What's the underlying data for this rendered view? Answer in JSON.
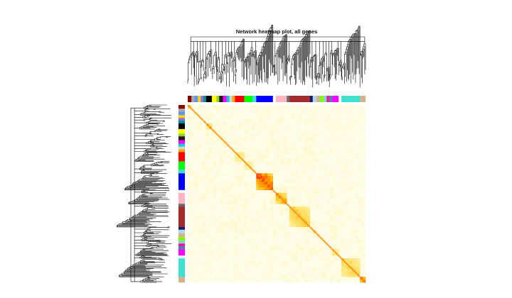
{
  "chart_data": {
    "type": "heatmap",
    "title": "Network heatmap plot, all genes",
    "xlabel": "",
    "ylabel": "",
    "legend": "none",
    "color_scale": [
      "#fffde7",
      "#fff3b0",
      "#ffe066",
      "#ffb300",
      "#ff6a00",
      "#e60000"
    ],
    "modules": [
      {
        "color": "#8b0000",
        "size": 4
      },
      {
        "color": "#a9a9a9",
        "size": 3
      },
      {
        "color": "#6495ed",
        "size": 4
      },
      {
        "color": "#ffd700",
        "size": 3
      },
      {
        "color": "#9370db",
        "size": 3
      },
      {
        "color": "#008b8b",
        "size": 3
      },
      {
        "color": "#000000",
        "size": 6
      },
      {
        "color": "#ffff00",
        "size": 5
      },
      {
        "color": "#9acd32",
        "size": 3
      },
      {
        "color": "#1c1c1c",
        "size": 4
      },
      {
        "color": "#ff00ff",
        "size": 4
      },
      {
        "color": "#00ced1",
        "size": 3
      },
      {
        "color": "#d3d3d3",
        "size": 3
      },
      {
        "color": "#ffa500",
        "size": 3
      },
      {
        "color": "#ff0000",
        "size": 10
      },
      {
        "color": "#00ff00",
        "size": 9
      },
      {
        "color": "#40e0d0",
        "size": 4
      },
      {
        "color": "#0000ff",
        "size": 18
      },
      {
        "color": "#ffffff",
        "size": 3
      },
      {
        "color": "#ffb6c1",
        "size": 12
      },
      {
        "color": "#696969",
        "size": 3
      },
      {
        "color": "#a52a2a",
        "size": 22
      },
      {
        "color": "#191970",
        "size": 3
      },
      {
        "color": "#add8e6",
        "size": 4
      },
      {
        "color": "#d2b48c",
        "size": 4
      },
      {
        "color": "#7fff00",
        "size": 4
      },
      {
        "color": "#87ceeb",
        "size": 3
      },
      {
        "color": "#ff1493",
        "size": 3
      },
      {
        "color": "#4682b4",
        "size": 3
      },
      {
        "color": "#ff00ff",
        "size": 7
      },
      {
        "color": "#e0ffff",
        "size": 3
      },
      {
        "color": "#40e0d0",
        "size": 20
      },
      {
        "color": "#d2b48c",
        "size": 6
      }
    ],
    "highlighted_blocks": [
      {
        "module": 0,
        "intensity": 0.65
      },
      {
        "module": 6,
        "intensity": 0.55
      },
      {
        "module": 14,
        "intensity": 0.4
      },
      {
        "module": 15,
        "intensity": 0.35
      },
      {
        "module": 17,
        "intensity": 0.95
      },
      {
        "module": 19,
        "intensity": 0.7
      },
      {
        "module": 21,
        "intensity": 0.55
      },
      {
        "module": 23,
        "intensity": 0.45
      },
      {
        "module": 29,
        "intensity": 0.45
      },
      {
        "module": 31,
        "intensity": 0.5
      },
      {
        "module": 32,
        "intensity": 0.85
      }
    ]
  },
  "colors": {
    "background": "#ffffff",
    "heatmap_base": "#fffde7",
    "dendrogram": "#000000"
  }
}
